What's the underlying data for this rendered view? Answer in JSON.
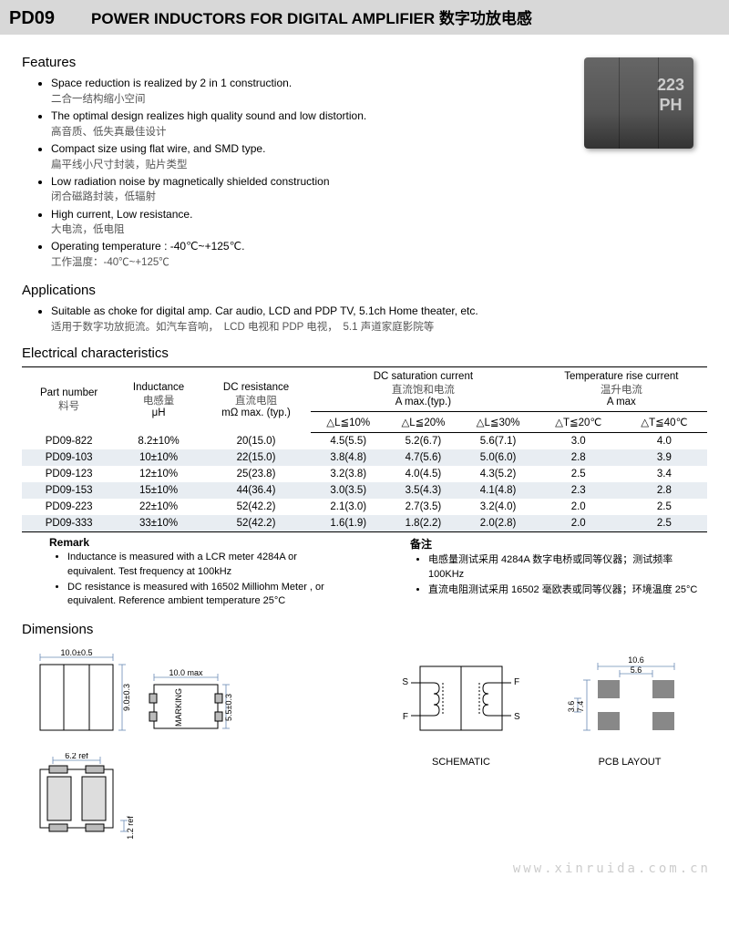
{
  "header": {
    "code": "PD09",
    "title": "POWER INDUCTORS FOR DIGITAL AMPLIFIER  数字功放电感"
  },
  "product_marking": {
    "line1": "223",
    "line2": "PH"
  },
  "sections": {
    "features": "Features",
    "applications": "Applications",
    "electrical": "Electrical  characteristics",
    "remark": "Remark",
    "remark_cn": "备注",
    "dimensions": "Dimensions"
  },
  "features": [
    {
      "en": "Space reduction is realized by 2 in 1 construction.",
      "cn": "二合一结构缩小空间"
    },
    {
      "en": "The optimal design realizes high quality sound and low distortion.",
      "cn": "高音质、低失真最佳设计"
    },
    {
      "en": "Compact size using flat wire, and SMD type.",
      "cn": "扁平线小尺寸封装，贴片类型"
    },
    {
      "en": "Low radiation noise by magnetically shielded construction",
      "cn": "闭合磁路封装，低辐射"
    },
    {
      "en": "High current, Low resistance.",
      "cn": "大电流，低电阻"
    },
    {
      "en": "Operating temperature : -40℃~+125℃.",
      "cn": "工作温度：-40℃~+125℃"
    }
  ],
  "applications": [
    {
      "en": "Suitable as choke for digital amp. Car audio, LCD and PDP TV, 5.1ch Home theater, etc.",
      "cn": "适用于数字功放扼流。如汽车音响，　LCD 电视和 PDP  电视，　5.1  声道家庭影院等"
    }
  ],
  "table": {
    "headers": {
      "part": {
        "en": "Part number",
        "cn": "料号"
      },
      "inductance": {
        "en": "Inductance",
        "cn": "电感量",
        "unit": "μH"
      },
      "dcr": {
        "en": "DC resistance",
        "cn": "直流电阻",
        "unit": "mΩ max. (typ.)"
      },
      "isat": {
        "en": "DC saturation current",
        "cn": "直流饱和电流",
        "unit": "A max.(typ.)",
        "sub": [
          "△L≦10%",
          "△L≦20%",
          "△L≦30%"
        ]
      },
      "itemp": {
        "en": "Temperature rise current",
        "cn": "温升电流",
        "unit": "A max",
        "sub": [
          "△T≦20℃",
          "△T≦40℃"
        ]
      }
    },
    "rows": [
      [
        "PD09-822",
        "8.2±10%",
        "20(15.0)",
        "4.5(5.5)",
        "5.2(6.7)",
        "5.6(7.1)",
        "3.0",
        "4.0"
      ],
      [
        "PD09-103",
        "10±10%",
        "22(15.0)",
        "3.8(4.8)",
        "4.7(5.6)",
        "5.0(6.0)",
        "2.8",
        "3.9"
      ],
      [
        "PD09-123",
        "12±10%",
        "25(23.8)",
        "3.2(3.8)",
        "4.0(4.5)",
        "4.3(5.2)",
        "2.5",
        "3.4"
      ],
      [
        "PD09-153",
        "15±10%",
        "44(36.4)",
        "3.0(3.5)",
        "3.5(4.3)",
        "4.1(4.8)",
        "2.3",
        "2.8"
      ],
      [
        "PD09-223",
        "22±10%",
        "52(42.2)",
        "2.1(3.0)",
        "2.7(3.5)",
        "3.2(4.0)",
        "2.0",
        "2.5"
      ],
      [
        "PD09-333",
        "33±10%",
        "52(42.2)",
        "1.6(1.9)",
        "1.8(2.2)",
        "2.0(2.8)",
        "2.0",
        "2.5"
      ]
    ]
  },
  "remarks_en": [
    "Inductance is measured with a LCR meter 4284A or equivalent. Test frequency at 100kHz",
    "DC resistance is measured with 16502 Milliohm Meter , or equivalent. Reference ambient temperature 25°C"
  ],
  "remarks_cn": [
    "电感量测试采用 4284A  数字电桥或同等仪器；测试频率 100KHz",
    "直流电阻测试采用 16502 毫欧表或同等仪器；环境温度 25°C"
  ],
  "dimensions": {
    "top_w": "10.0±0.5",
    "top_h": "9.0±0.3",
    "side_w": "10.0 max",
    "side_h": "5.5±0.3",
    "marking": "MARKING",
    "bottom_w": "6.2 ref",
    "bottom_h": "1.2 ref",
    "schematic_label": "SCHEMATIC",
    "pcb_label": "PCB LAYOUT",
    "pcb_w1": "10.6",
    "pcb_w2": "5.6",
    "pcb_h1": "7.4",
    "pcb_h2": "3.6",
    "pin_S": "S",
    "pin_F": "F"
  },
  "watermark": "www.xinruida.com.cn",
  "colors": {
    "header_bg": "#d8d8d8",
    "row_alt": "#e8edf2",
    "stroke": "#000000",
    "dim_blue": "#6a8bb5",
    "pad_gray": "#888888"
  }
}
